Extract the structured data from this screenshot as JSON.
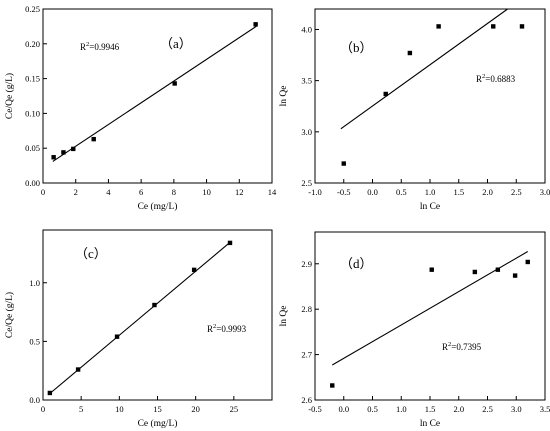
{
  "chart_data": [
    {
      "id": "a",
      "type": "scatter",
      "panel_label": "（a）",
      "r2_label": "R",
      "r2_sup": "2",
      "r2_value": "=0.9946",
      "xlabel": "Ce (mg/L)",
      "ylabel": "Ce/Qe (g/L)",
      "xlim": [
        0,
        14
      ],
      "ylim": [
        0,
        0.25
      ],
      "xticks": [
        0,
        2,
        4,
        6,
        8,
        10,
        12,
        14
      ],
      "yticks": [
        0.0,
        0.05,
        0.1,
        0.15,
        0.2,
        0.25
      ],
      "ytick_labels": [
        "0.00",
        "0.05",
        "0.10",
        "0.15",
        "0.20",
        "0.25"
      ],
      "points": [
        [
          0.65,
          0.037
        ],
        [
          1.25,
          0.044
        ],
        [
          1.85,
          0.049
        ],
        [
          3.1,
          0.063
        ],
        [
          8.05,
          0.143
        ],
        [
          13.0,
          0.228
        ]
      ],
      "fit_line": [
        [
          0.6,
          0.031
        ],
        [
          13.1,
          0.226
        ]
      ]
    },
    {
      "id": "b",
      "type": "scatter",
      "panel_label": "（b）",
      "r2_label": "R",
      "r2_sup": "2",
      "r2_value": "=0.6883",
      "xlabel": "ln Ce",
      "ylabel": "ln Qe",
      "xlim": [
        -1.0,
        3.0
      ],
      "ylim": [
        2.5,
        4.2
      ],
      "xticks": [
        -1.0,
        -0.5,
        0.0,
        0.5,
        1.0,
        1.5,
        2.0,
        2.5,
        3.0
      ],
      "xtick_labels": [
        "-1.0",
        "-0.5",
        "0.0",
        "0.5",
        "1.0",
        "1.5",
        "2.0",
        "2.5",
        "3.0"
      ],
      "yticks": [
        2.5,
        3.0,
        3.5,
        4.0
      ],
      "ytick_labels": [
        "2.5",
        "3.0",
        "3.5",
        "4.0"
      ],
      "points": [
        [
          -0.5,
          2.69
        ],
        [
          0.23,
          3.37
        ],
        [
          0.65,
          3.77
        ],
        [
          1.15,
          4.03
        ],
        [
          2.1,
          4.03
        ],
        [
          2.6,
          4.03
        ]
      ],
      "fit_line": [
        [
          -0.55,
          3.03
        ],
        [
          2.35,
          4.2
        ]
      ]
    },
    {
      "id": "c",
      "type": "scatter",
      "panel_label": "（c）",
      "r2_label": "R",
      "r2_sup": "2",
      "r2_value": "=0.9993",
      "xlabel": "Ce (mg/L)",
      "ylabel": "Ce/Qe (g/L)",
      "xlim": [
        0,
        30
      ],
      "ylim": [
        0,
        1.45
      ],
      "xticks": [
        0,
        5,
        10,
        15,
        20,
        25
      ],
      "yticks": [
        0.0,
        0.5,
        1.0
      ],
      "ytick_labels": [
        "0.0",
        "0.5",
        "1.0"
      ],
      "points": [
        [
          0.9,
          0.06
        ],
        [
          4.6,
          0.26
        ],
        [
          9.7,
          0.54
        ],
        [
          14.6,
          0.81
        ],
        [
          19.8,
          1.11
        ],
        [
          24.5,
          1.34
        ]
      ],
      "fit_line": [
        [
          0.8,
          0.05
        ],
        [
          24.6,
          1.35
        ]
      ]
    },
    {
      "id": "d",
      "type": "scatter",
      "panel_label": "（d）",
      "r2_label": "R",
      "r2_sup": "2",
      "r2_value": "=0.7395",
      "xlabel": "ln Ce",
      "ylabel": "ln Qe",
      "xlim": [
        -0.5,
        3.5
      ],
      "ylim": [
        2.6,
        2.97
      ],
      "xticks": [
        -0.5,
        0.0,
        0.5,
        1.0,
        1.5,
        2.0,
        2.5,
        3.0,
        3.5
      ],
      "xtick_labels": [
        "-0.5",
        "0.0",
        "0.5",
        "1.0",
        "1.5",
        "2.0",
        "2.5",
        "3.0",
        "3.5"
      ],
      "yticks": [
        2.6,
        2.7,
        2.8,
        2.9
      ],
      "ytick_labels": [
        "2.6",
        "2.7",
        "2.8",
        "2.9"
      ],
      "points": [
        [
          -0.2,
          2.632
        ],
        [
          1.53,
          2.887
        ],
        [
          2.28,
          2.882
        ],
        [
          2.68,
          2.887
        ],
        [
          2.98,
          2.874
        ],
        [
          3.2,
          2.904
        ]
      ],
      "fit_line": [
        [
          -0.2,
          2.677
        ],
        [
          3.2,
          2.927
        ]
      ]
    }
  ]
}
